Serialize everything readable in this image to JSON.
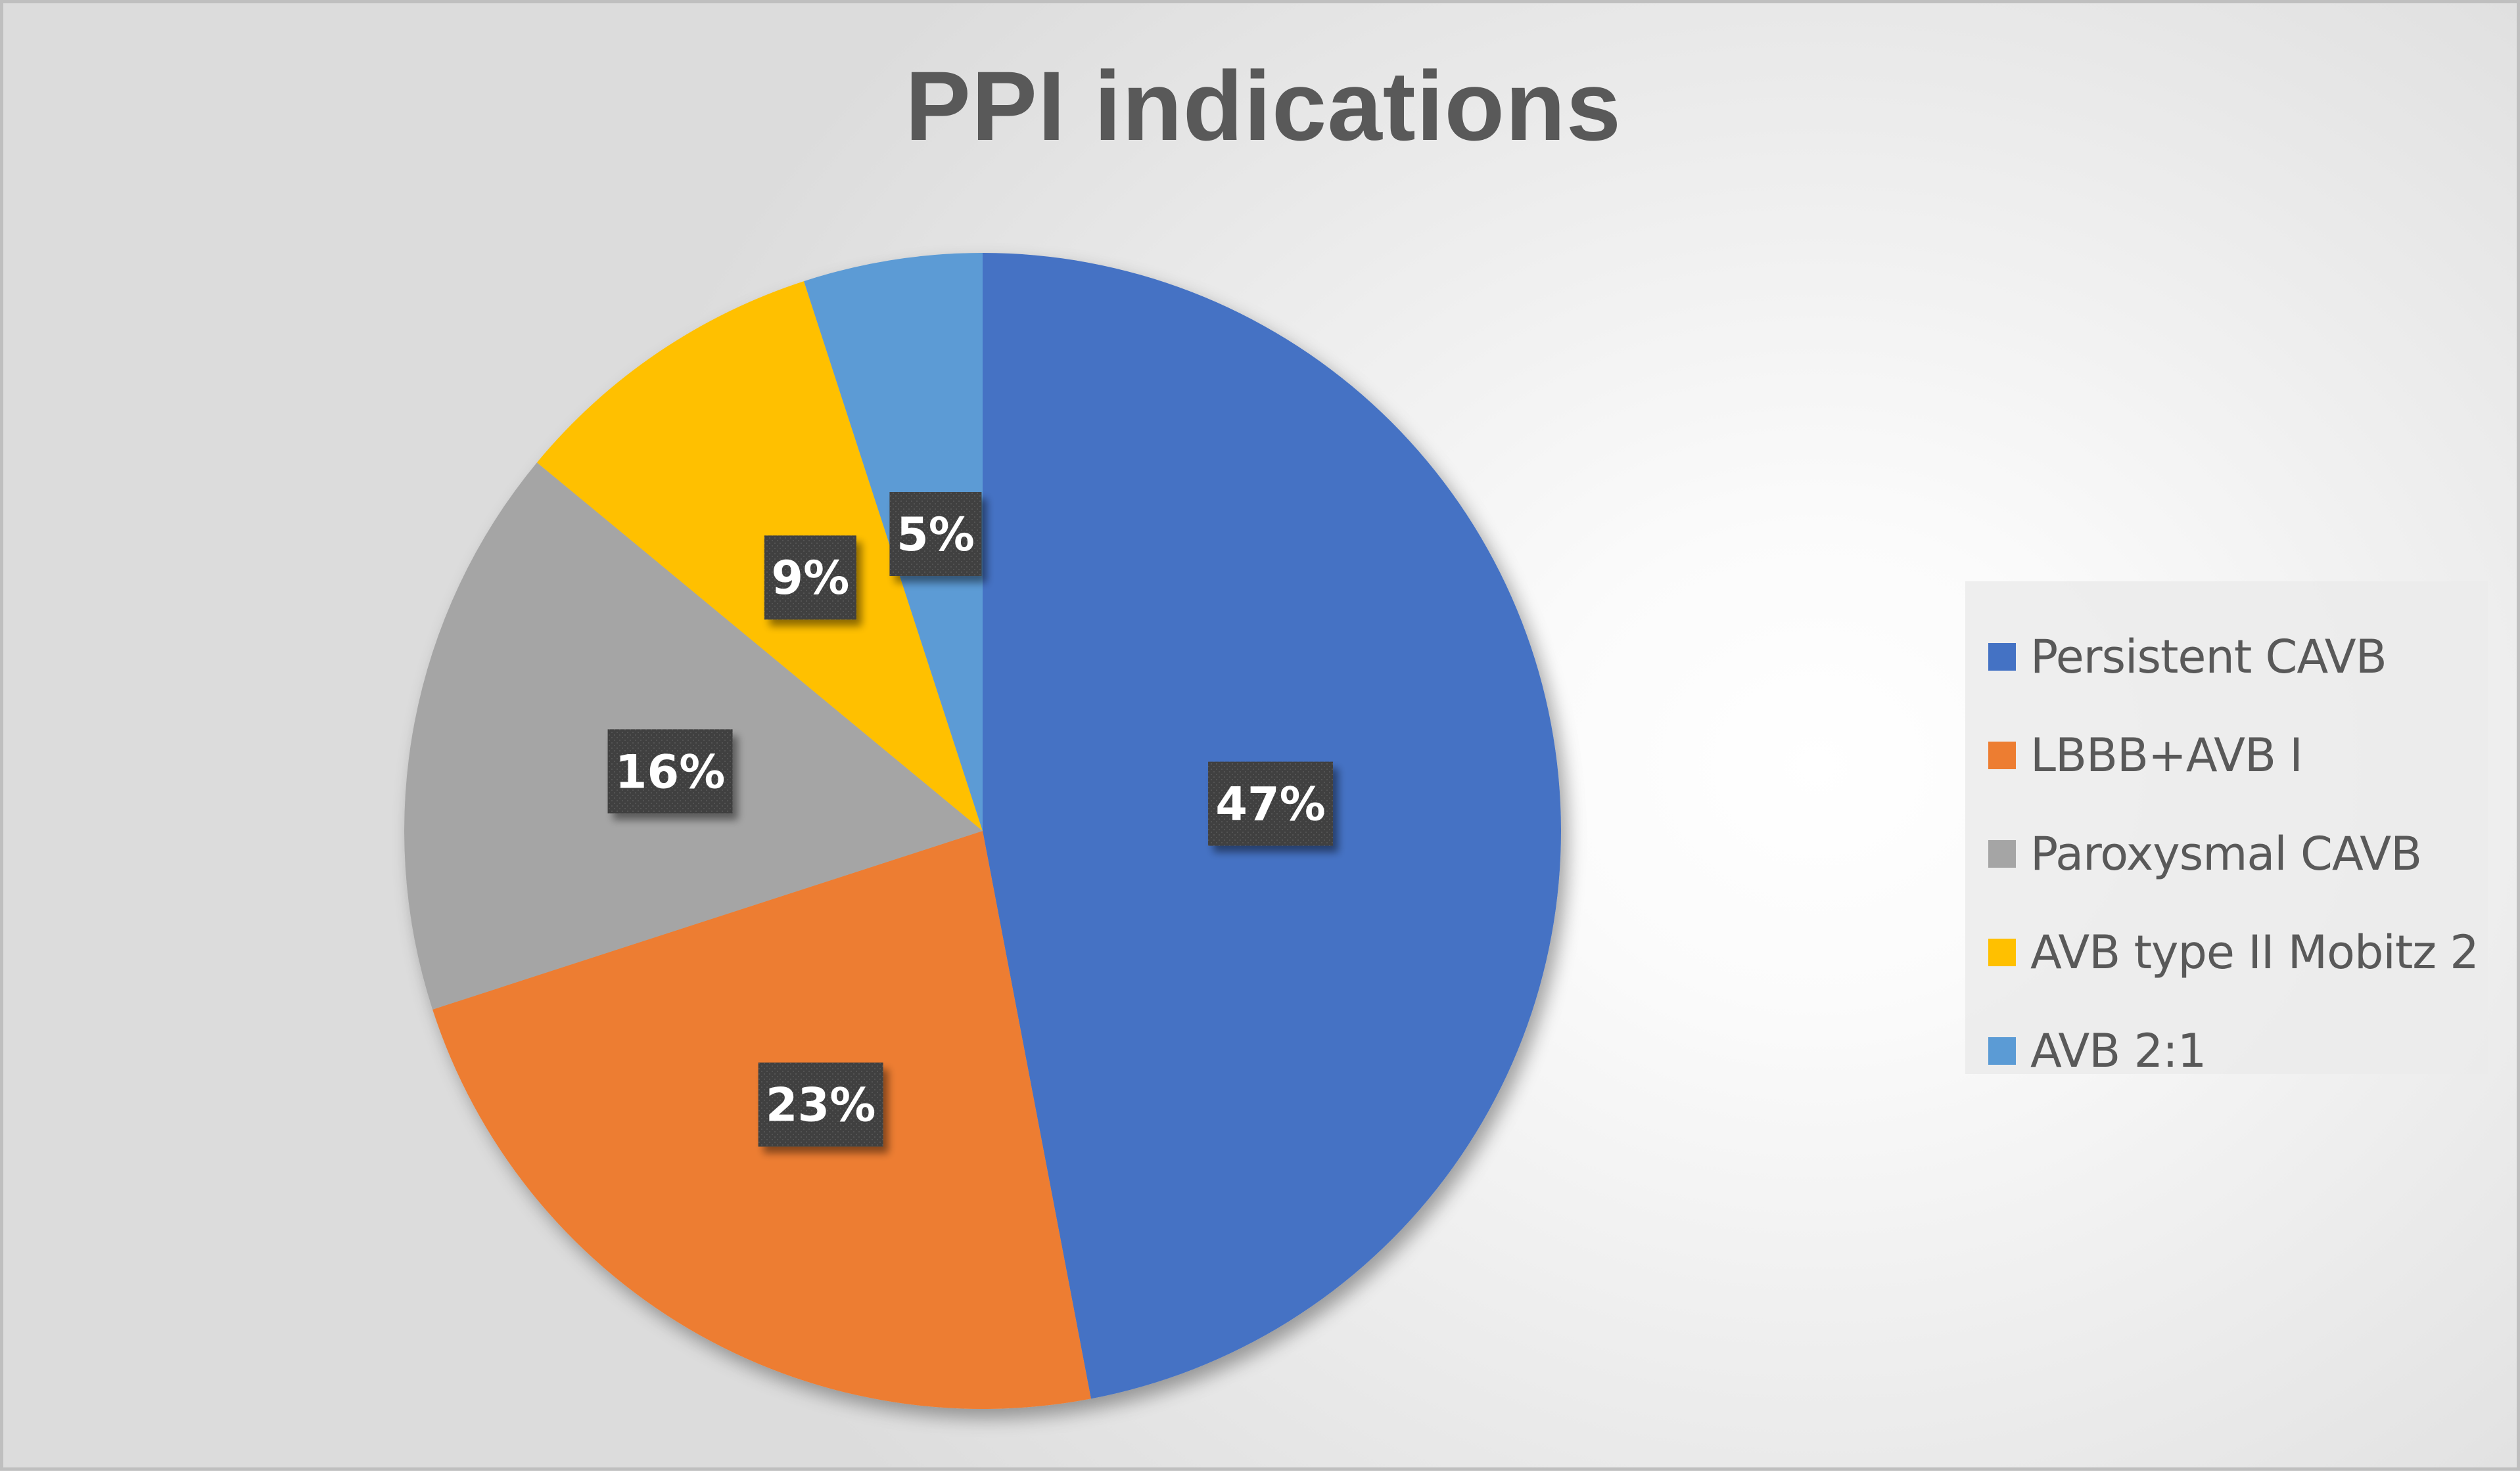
{
  "chart_data": {
    "type": "pie",
    "title": "PPI indications",
    "categories": [
      "Persistent CAVB",
      "LBBB+AVB I",
      "Paroxysmal CAVB",
      "AVB type II Mobitz 2",
      "AVB 2:1"
    ],
    "values": [
      47,
      23,
      16,
      9,
      5
    ],
    "labels": [
      "47%",
      "23%",
      "16%",
      "9%",
      "5%"
    ],
    "colors": [
      "#4472c4",
      "#ed7d31",
      "#a5a5a5",
      "#ffc000",
      "#5b9bd5"
    ],
    "legend_position": "right",
    "label_box_color": "#404040"
  }
}
